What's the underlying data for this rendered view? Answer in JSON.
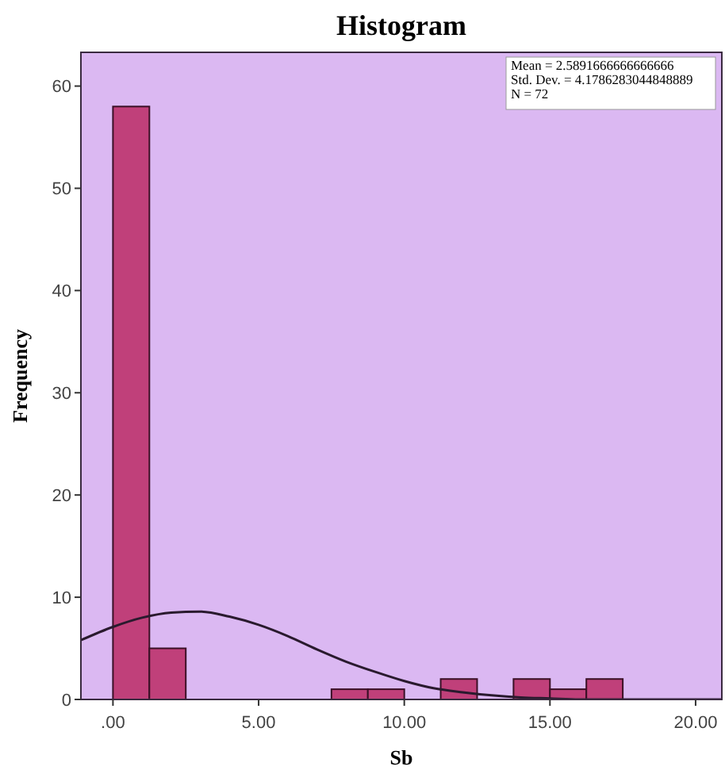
{
  "chart_data": {
    "type": "histogram",
    "title": "Histogram",
    "xlabel": "Sb",
    "ylabel": "Frequency",
    "annotations": [
      "Mean = 2.5891666666666666",
      "Std. Dev. = 4.1786283044848889",
      "N = 72"
    ],
    "bins": [
      0,
      1.25,
      2.5,
      3.75,
      5,
      6.25,
      7.5,
      8.75,
      10,
      11.25,
      12.5,
      13.75,
      15,
      16.25,
      17.5
    ],
    "series": [
      {
        "color": "#c0407a",
        "values": [
          58,
          5,
          0,
          0,
          0,
          0,
          1,
          1,
          0,
          2,
          0,
          2,
          1,
          2
        ]
      },
      {
        "type": "line",
        "color": "#2a1a2e",
        "x": [
          -1.1,
          0,
          1,
          2,
          3,
          4,
          5,
          6,
          7,
          8,
          9,
          10,
          11,
          12,
          13,
          14,
          15,
          16,
          17,
          18,
          19,
          20,
          20.9
        ],
        "values": [
          5.8,
          7.1,
          8.0,
          8.5,
          8.6,
          8.1,
          7.3,
          6.2,
          4.9,
          3.7,
          2.7,
          1.8,
          1.1,
          0.7,
          0.4,
          0.2,
          0.1,
          0,
          0,
          0,
          0,
          0,
          0
        ]
      }
    ],
    "xlim": [
      -1.1,
      20.9
    ],
    "xticks": [
      {
        "value": 0,
        "label": ".00"
      },
      {
        "value": 5,
        "label": "5.00"
      },
      {
        "value": 10,
        "label": "10.00"
      },
      {
        "value": 15,
        "label": "15.00"
      },
      {
        "value": 20,
        "label": "20.00"
      }
    ],
    "ylim": [
      0,
      63.3
    ],
    "yticks": [
      0,
      10,
      20,
      30,
      40,
      50,
      60
    ],
    "grid": false
  }
}
